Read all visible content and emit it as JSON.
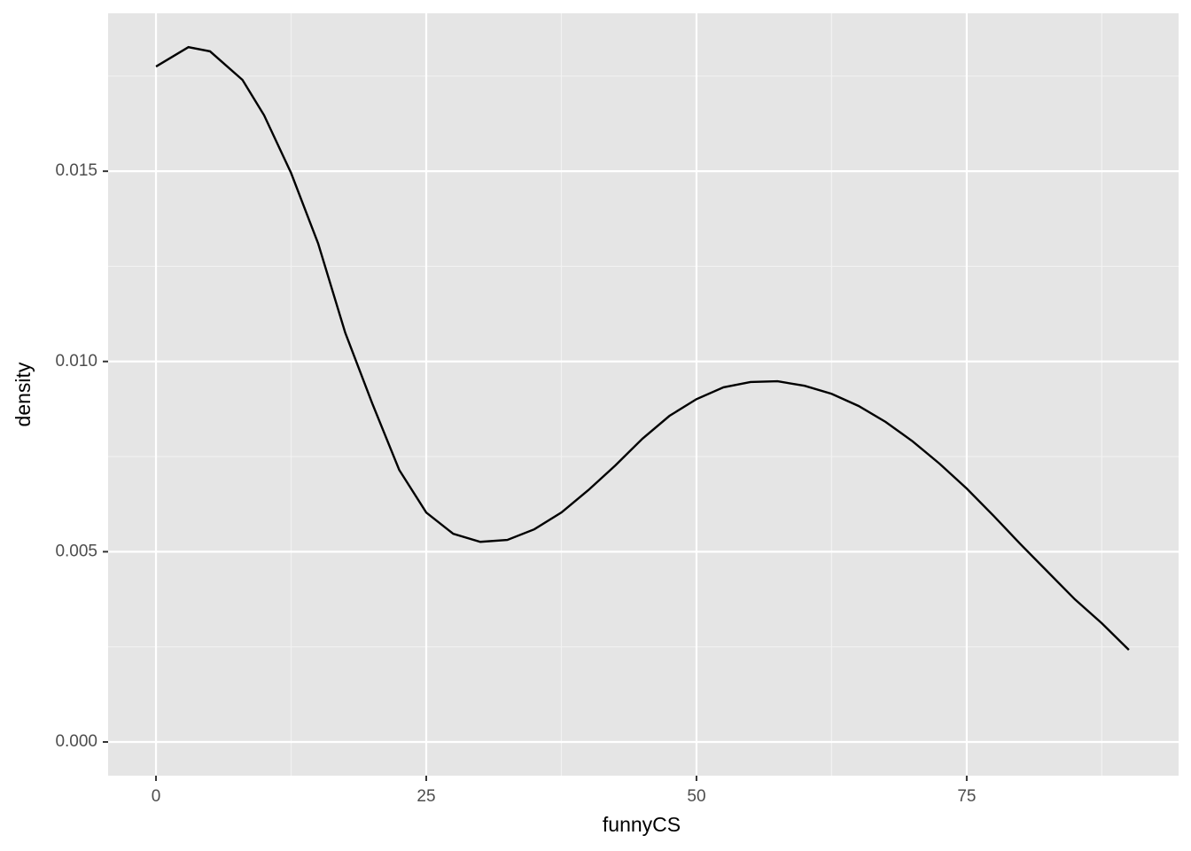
{
  "chart_data": {
    "type": "line",
    "x_label": "funnyCS",
    "y_label": "density",
    "x": [
      0,
      3,
      5,
      8,
      10,
      12.5,
      15,
      17.5,
      20,
      22.5,
      25,
      27.5,
      30,
      32.5,
      35,
      37.5,
      40,
      42.5,
      45,
      47.5,
      50,
      52.5,
      55,
      57.5,
      60,
      62.5,
      65,
      67.5,
      70,
      72.5,
      75,
      77.5,
      80,
      82.5,
      85,
      87.5,
      90
    ],
    "values": [
      0.01775,
      0.01826,
      0.01815,
      0.0174,
      0.01647,
      0.01495,
      0.0131,
      0.01076,
      0.0089,
      0.00715,
      0.00603,
      0.00547,
      0.00526,
      0.00531,
      0.00559,
      0.00603,
      0.00662,
      0.00727,
      0.00797,
      0.00857,
      0.00901,
      0.00932,
      0.00946,
      0.00948,
      0.00936,
      0.00915,
      0.00883,
      0.00841,
      0.0079,
      0.00731,
      0.00666,
      0.00594,
      0.00519,
      0.00447,
      0.00375,
      0.00312,
      0.00242
    ],
    "color": "#000000",
    "xlim": [
      -4.43,
      94.6
    ],
    "ylim": [
      -0.000885,
      0.01915
    ],
    "xticks": [
      0,
      25,
      50,
      75
    ],
    "yticks": [
      {
        "value": 0,
        "label": "0.000"
      },
      0.005,
      {
        "value": 0.01,
        "label": "0.010"
      },
      0.015
    ],
    "grid": true,
    "minor_grid": true
  }
}
